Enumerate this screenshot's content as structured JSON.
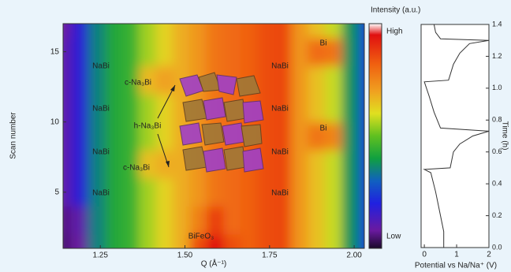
{
  "chart_data": [
    {
      "type": "heatmap",
      "x_label": "Q (Å⁻¹)",
      "y_label": "Scan number",
      "colorbar_label": "Intensity (a.u.)",
      "colorbar_high": "High",
      "colorbar_low": "Low",
      "x": [
        1.14,
        1.19,
        1.24,
        1.29,
        1.34,
        1.39,
        1.44,
        1.49,
        1.54,
        1.59,
        1.64,
        1.69,
        1.74,
        1.79,
        1.84,
        1.89,
        1.94,
        1.99,
        2.04
      ],
      "y": [
        1,
        3,
        5,
        7,
        9,
        11,
        13,
        15,
        17
      ],
      "z": [
        [
          5,
          8,
          35,
          42,
          45,
          55,
          62,
          68,
          85,
          95,
          85,
          82,
          85,
          86,
          72,
          65,
          58,
          38,
          25
        ],
        [
          6,
          10,
          35,
          42,
          45,
          55,
          62,
          68,
          76,
          88,
          80,
          82,
          85,
          86,
          72,
          65,
          58,
          38,
          25
        ],
        [
          10,
          18,
          35,
          42,
          45,
          55,
          62,
          68,
          72,
          78,
          80,
          82,
          85,
          86,
          72,
          65,
          58,
          38,
          25
        ],
        [
          10,
          18,
          35,
          42,
          45,
          65,
          68,
          68,
          72,
          78,
          80,
          82,
          85,
          86,
          72,
          65,
          58,
          38,
          25
        ],
        [
          10,
          18,
          35,
          42,
          45,
          55,
          62,
          68,
          72,
          78,
          80,
          82,
          85,
          86,
          72,
          78,
          75,
          38,
          25
        ],
        [
          10,
          18,
          35,
          42,
          45,
          55,
          62,
          68,
          72,
          78,
          80,
          82,
          85,
          86,
          72,
          65,
          58,
          38,
          25
        ],
        [
          10,
          18,
          35,
          42,
          45,
          66,
          70,
          68,
          72,
          78,
          80,
          82,
          85,
          86,
          72,
          65,
          58,
          38,
          25
        ],
        [
          10,
          18,
          35,
          42,
          45,
          55,
          62,
          68,
          72,
          78,
          80,
          82,
          85,
          86,
          72,
          80,
          78,
          38,
          25
        ],
        [
          8,
          18,
          35,
          42,
          45,
          55,
          62,
          68,
          72,
          78,
          80,
          82,
          85,
          86,
          72,
          65,
          58,
          38,
          25
        ]
      ],
      "zlim": [
        0,
        100
      ],
      "xlim": [
        1.14,
        2.03
      ],
      "ylim": [
        1,
        17
      ],
      "xticks": [
        1.25,
        {
          "value": 1.5,
          "label": "1.50"
        },
        1.75,
        {
          "value": 2,
          "label": "2.00"
        }
      ],
      "yticks": [
        5,
        10,
        15
      ],
      "annotations": [
        "NaBi",
        "NaBi",
        "NaBi",
        "NaBi",
        "NaBi",
        "NaBi",
        "NaBi",
        "NaBi",
        "c-Na₃Bi",
        "c-Na₃Bi",
        "h-Na₃Bi",
        "BiFeO₃",
        "Bi",
        "Bi"
      ]
    },
    {
      "type": "line",
      "x_label": "Potential vs Na/Na⁺ (V)",
      "y_label": "Time (h)",
      "color": "#333333",
      "x": [
        0.6,
        0.6,
        0.5,
        0.35,
        0.2,
        0,
        0.8,
        0.9,
        1.1,
        1.5,
        2,
        0.5,
        0.3,
        0.15,
        0,
        0.75,
        0.9,
        1.1,
        1.4,
        2,
        0.5,
        0.35,
        0.3
      ],
      "values": [
        0,
        0.1,
        0.2,
        0.35,
        0.47,
        0.49,
        0.5,
        0.6,
        0.65,
        0.7,
        0.73,
        0.75,
        0.85,
        0.95,
        1.04,
        1.05,
        1.15,
        1.22,
        1.28,
        1.3,
        1.31,
        1.35,
        1.4
      ],
      "xlim": [
        -0.1,
        2
      ],
      "ylim": [
        0,
        1.4
      ],
      "xticks": [
        0,
        1,
        2
      ],
      "yticks": [
        {
          "value": 0,
          "label": "0.0"
        },
        {
          "value": 0.2,
          "label": "0.2"
        },
        {
          "value": 0.4,
          "label": "0.4"
        },
        {
          "value": 0.6,
          "label": "0.6"
        },
        {
          "value": 0.8,
          "label": "0.8"
        },
        {
          "value": 1,
          "label": "1.0"
        },
        {
          "value": 1.2,
          "label": "1.2"
        },
        {
          "value": 1.4,
          "label": "1.4"
        }
      ]
    }
  ]
}
